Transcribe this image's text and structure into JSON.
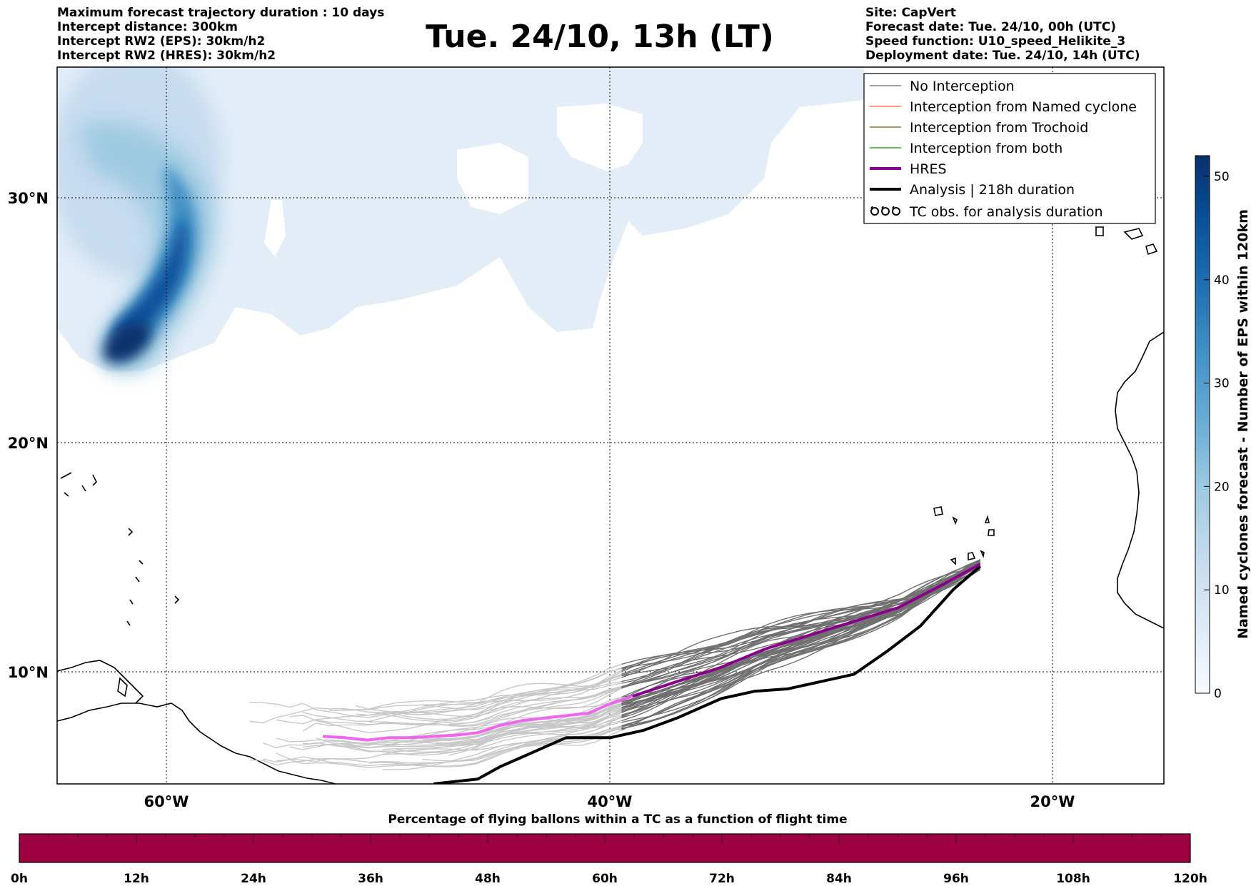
{
  "header_left": [
    "Maximum forecast trajectory duration : 10 days",
    "Intercept distance: 300km",
    "Intercept RW2 (EPS):  30km/h2",
    "Intercept RW2 (HRES): 30km/h2"
  ],
  "title": "Tue. 24/10, 13h (LT)",
  "header_right": [
    "Site: CapVert",
    "Forecast date: Tue. 24/10, 00h (UTC)",
    "Speed function: U10_speed_Helikite_3",
    "Deployment date: Tue. 24/10, 14h (UTC)"
  ],
  "map": {
    "lon_range": [
      -65,
      -15
    ],
    "lat_range": [
      5.4,
      34.6
    ],
    "lat_ticks": [
      {
        "value": 30,
        "label": "30°N"
      },
      {
        "value": 20,
        "label": "20°N"
      },
      {
        "value": 10,
        "label": "10°N"
      }
    ],
    "lon_ticks": [
      {
        "value": -60,
        "label": "60°W"
      },
      {
        "value": -40,
        "label": "40°W"
      },
      {
        "value": -20,
        "label": "20°W"
      }
    ],
    "colors": {
      "no_interception_near": "#707070",
      "no_interception_far": "#c8c8c8",
      "named_cyclone": "#ff7f50",
      "trochoid": "#8b7d2a",
      "both": "#2ca02c",
      "hres": "#8b008b",
      "hres_far": "#ee66ee",
      "analysis": "#000000"
    }
  },
  "legend": {
    "items": [
      {
        "label": "No Interception",
        "color": "#808080",
        "style": "thin"
      },
      {
        "label": "Interception from Named cyclone",
        "color": "#ff7f50",
        "style": "thin"
      },
      {
        "label": "Interception from Trochoid",
        "color": "#8b7d2a",
        "style": "thin"
      },
      {
        "label": "Interception from both",
        "color": "#2ca02c",
        "style": "thin"
      },
      {
        "label": "HRES",
        "color": "#8b008b",
        "style": "thick"
      },
      {
        "label": "Analysis | 218h duration",
        "color": "#000000",
        "style": "thick"
      },
      {
        "label": "TC obs. for analysis duration",
        "color": "#000000",
        "style": "symbol"
      }
    ]
  },
  "colorbar": {
    "label": "Named cyclones forecast - Number of EPS within 120km",
    "ticks": [
      "0",
      "10",
      "20",
      "30",
      "40",
      "50"
    ],
    "range": [
      0,
      52
    ],
    "colors": [
      "#f7fbff",
      "#deebf7",
      "#c6dbef",
      "#9ecae1",
      "#6baed6",
      "#4292c6",
      "#2171b5",
      "#08519c",
      "#08306b"
    ]
  },
  "progress_bar": {
    "title": "Percentage of flying ballons within a TC as a function of flight time",
    "ticks": [
      "0h",
      "12h",
      "24h",
      "36h",
      "48h",
      "60h",
      "72h",
      "84h",
      "96h",
      "108h",
      "120h"
    ],
    "fill_color": "#9e0142",
    "percent_values": [
      0,
      0,
      0,
      0,
      0,
      0,
      0,
      0,
      0,
      0,
      0
    ]
  },
  "chart_data": {
    "type": "line",
    "x_unit": "longitude (°E, negative = W)",
    "y_unit": "latitude (°N)",
    "series": [
      {
        "name": "HRES",
        "x": [
          -23.3,
          -25,
          -27,
          -29,
          -31,
          -33,
          -35,
          -37,
          -39,
          -40,
          -41,
          -42,
          -43,
          -44,
          -45,
          -46,
          -47,
          -48,
          -49,
          -50,
          -51,
          -52,
          -53
        ],
        "y": [
          14.7,
          13.8,
          12.8,
          12.2,
          11.6,
          11.0,
          10.2,
          9.6,
          9.0,
          8.7,
          8.3,
          8.2,
          8.1,
          8.0,
          7.8,
          7.5,
          7.4,
          7.35,
          7.3,
          7.3,
          7.2,
          7.3,
          7.35
        ]
      },
      {
        "name": "Analysis | 218h duration",
        "x": [
          -23.3,
          -24.5,
          -26,
          -27.5,
          -29,
          -30.5,
          -32,
          -33.5,
          -35,
          -37,
          -38.5,
          -40,
          -41,
          -42,
          -43,
          -44,
          -45,
          -46,
          -47,
          -48
        ],
        "y": [
          14.6,
          13.6,
          12.0,
          10.9,
          9.9,
          9.6,
          9.3,
          9.2,
          8.9,
          8.1,
          7.6,
          7.3,
          7.3,
          7.3,
          6.9,
          6.5,
          6.1,
          5.6,
          5.5,
          5.35
        ]
      }
    ]
  }
}
